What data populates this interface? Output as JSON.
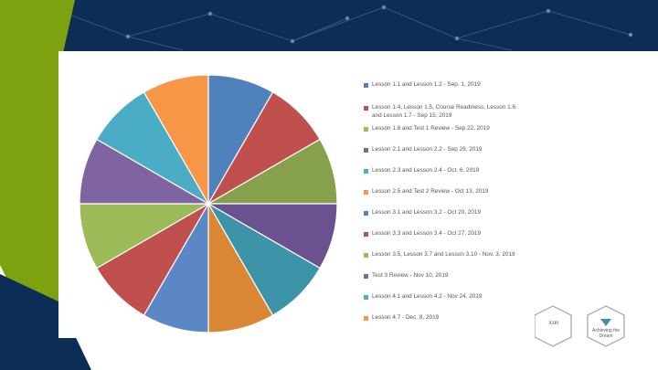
{
  "chart_data": {
    "type": "pie",
    "categories": [
      "Lesson 1.1 and Lesson 1.2 - Sep. 1, 2019",
      "Lesson 1.4, Lesson 1.5, Course Readiness, Lesson 1.6 and Lesson 1.7 - Sep 15, 2019",
      "Lesson 1.8 and Test 1 Review - Sep 22, 2019",
      "Lesson 2.1 and Lesson 2.2 - Sep 29, 2019",
      "Lesson 2.3 and Lesson 2.4 - Oct. 6, 2019",
      "Lesson 2.5 and Test 2 Review - Oct 13, 2019",
      "Lesson 3.1 and Lesson 3.2 - Oct 20, 2019",
      "Lesson 3.3 and Lesson 3.4 - Oct 27, 2019",
      "Lesson 3.5, Lesson 3.7 and Lesson 3.10 - Nov. 3, 2019",
      "Test 3 Review - Nov 10, 2019",
      "Lesson 4.1 and Lesson 4.2 - Nov 24, 2019",
      "Lesson 4.7 - Dec. 8, 2019"
    ],
    "values": [
      1,
      1,
      1,
      1,
      1,
      1,
      1,
      1,
      1,
      1,
      1,
      1
    ],
    "colors": [
      "#4f81bd",
      "#c0504d",
      "#9bbb59",
      "#8064a2",
      "#4bacc6",
      "#f79646",
      "#4f81bd",
      "#c0504d",
      "#9bbb59",
      "#8064a2",
      "#4bacc6",
      "#f79646"
    ],
    "slice_colors_clockwise_from_top": [
      "#4f81bd",
      "#c0504d",
      "#87a04b",
      "#6a5190",
      "#3d93a8",
      "#d98735",
      "#5b87c5",
      "#c0504d",
      "#9bbb59",
      "#8064a2",
      "#4bacc6",
      "#f79646"
    ],
    "legend_position": "right",
    "title": ""
  },
  "logos": {
    "left_logo_text": "icon",
    "right_logo_text": "Achieving the Dream"
  }
}
